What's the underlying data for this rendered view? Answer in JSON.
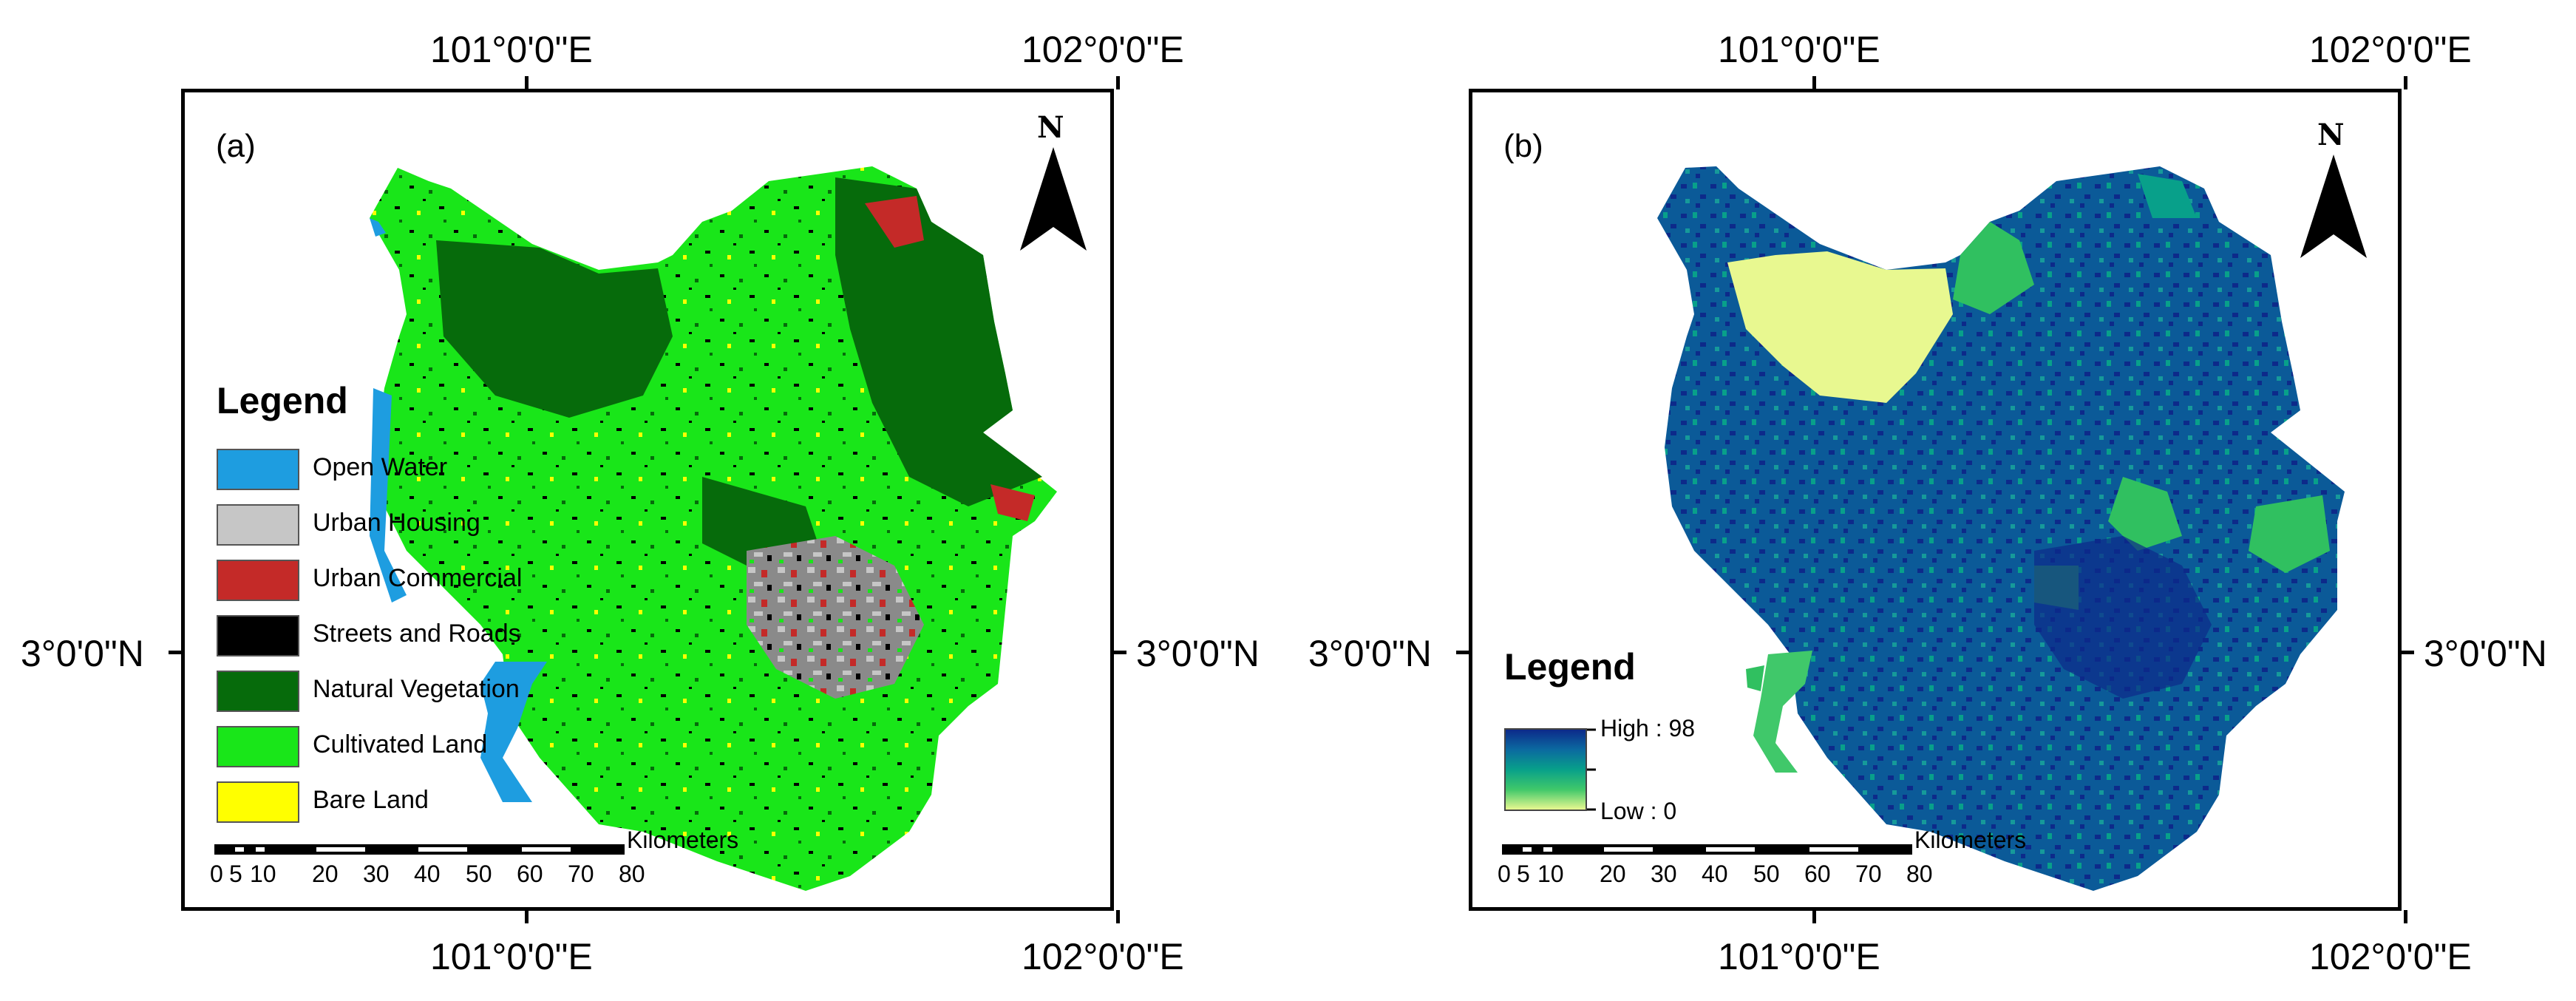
{
  "panel_a": {
    "label": "(a)",
    "coords": {
      "top_left": "101°0'0\"E",
      "top_right": "102°0'0\"E",
      "bottom_left": "101°0'0\"E",
      "bottom_right": "102°0'0\"E",
      "left": "3°0'0\"N",
      "right": "3°0'0\"N"
    },
    "north": "N",
    "legend": {
      "title": "Legend",
      "items": [
        {
          "label": "Open Water",
          "color": "#1e9de0"
        },
        {
          "label": "Urban Housing",
          "color": "#c6c6c6"
        },
        {
          "label": "Urban Commercial",
          "color": "#c42a28"
        },
        {
          "label": "Streets and Roads",
          "color": "#000000"
        },
        {
          "label": "Natural Vegetation",
          "color": "#066b0b"
        },
        {
          "label": "Cultivated Land",
          "color": "#19e619"
        },
        {
          "label": "Bare Land",
          "color": "#ffff00"
        }
      ]
    },
    "scale": {
      "unit": "Kilometers",
      "ticks": [
        "0",
        "5",
        "10",
        "20",
        "30",
        "40",
        "50",
        "60",
        "70",
        "80"
      ]
    }
  },
  "panel_b": {
    "label": "(b)",
    "coords": {
      "top_left": "101°0'0\"E",
      "top_right": "102°0'0\"E",
      "bottom_left": "101°0'0\"E",
      "bottom_right": "102°0'0\"E",
      "left": "3°0'0\"N",
      "right": "3°0'0\"N"
    },
    "north": "N",
    "legend": {
      "title": "Legend",
      "high": "High : 98",
      "low": "Low : 0",
      "ramp_colors": [
        "#0d2a8a",
        "#0b6aa0",
        "#08a08a",
        "#40c86a",
        "#e8f890"
      ]
    },
    "scale": {
      "unit": "Kilometers",
      "ticks": [
        "0",
        "5",
        "10",
        "20",
        "30",
        "40",
        "50",
        "60",
        "70",
        "80"
      ]
    }
  }
}
